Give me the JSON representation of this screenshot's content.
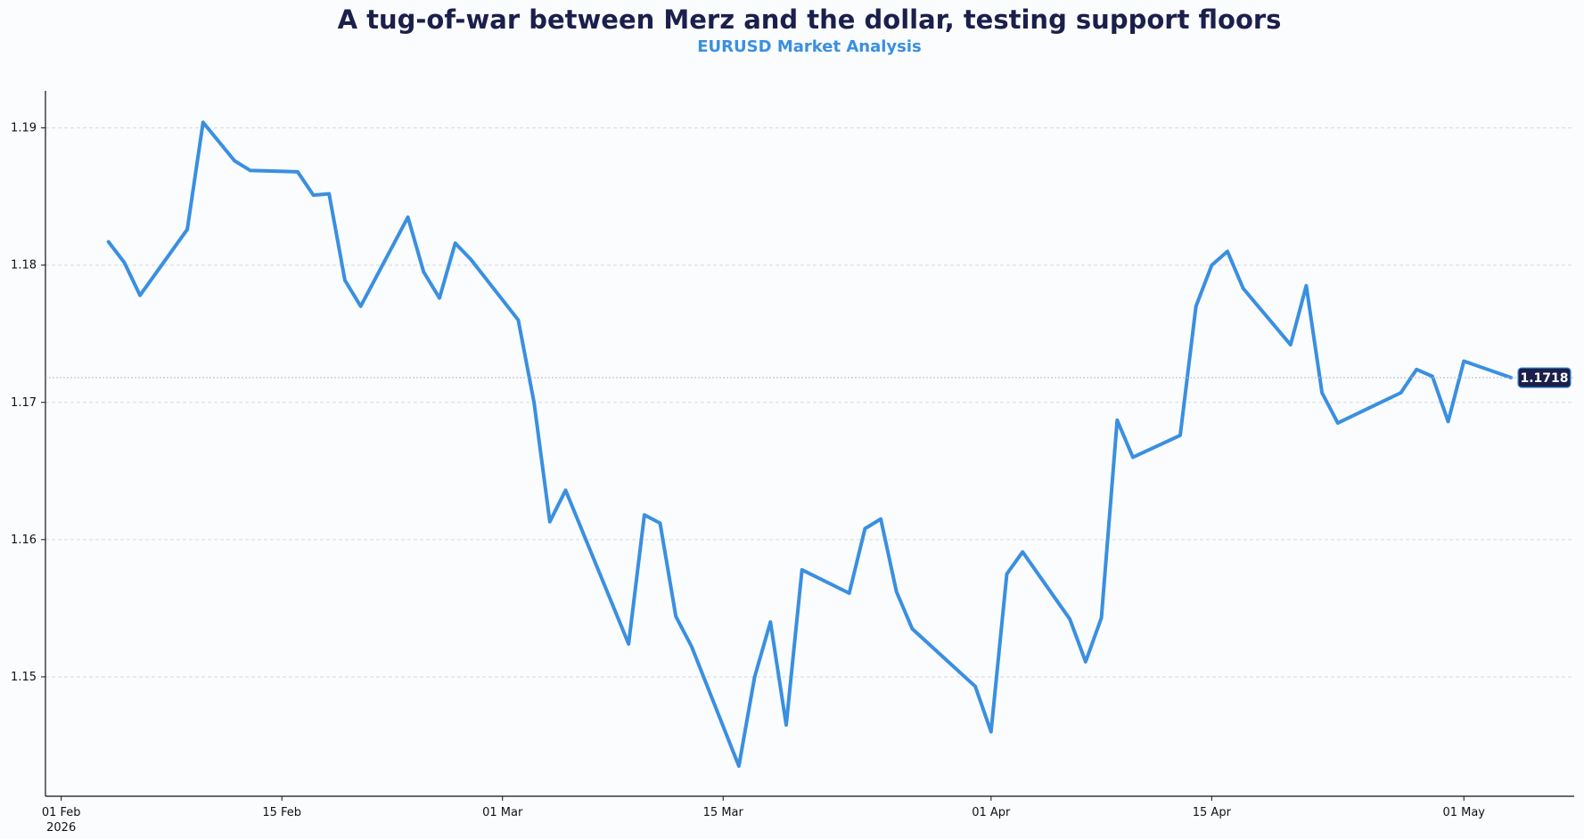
{
  "chart_data": {
    "type": "line",
    "title": "A tug-of-war between Merz and the dollar, testing support floors",
    "subtitle": "EURUSD Market Analysis",
    "xlabel": "",
    "ylabel": "",
    "xlim": [
      "2026-01-31",
      "2026-05-08"
    ],
    "ylim": [
      1.1413,
      1.1927
    ],
    "x_ticks": [
      {
        "date": "2026-02-01",
        "label": "01 Feb",
        "sublabel": "2026"
      },
      {
        "date": "2026-02-15",
        "label": "15 Feb"
      },
      {
        "date": "2026-03-01",
        "label": "01 Mar"
      },
      {
        "date": "2026-03-15",
        "label": "15 Mar"
      },
      {
        "date": "2026-04-01",
        "label": "01 Apr"
      },
      {
        "date": "2026-04-15",
        "label": "15 Apr"
      },
      {
        "date": "2026-05-01",
        "label": "01 May"
      }
    ],
    "y_ticks": [
      1.15,
      1.16,
      1.17,
      1.18,
      1.19
    ],
    "y_tick_labels": [
      "1.15",
      "1.16",
      "1.17",
      "1.18",
      "1.19"
    ],
    "grid": "horizontal dashed",
    "series": [
      {
        "color": "#3a8fe0",
        "x": [
          "2026-02-04",
          "2026-02-05",
          "2026-02-06",
          "2026-02-09",
          "2026-02-10",
          "2026-02-11",
          "2026-02-12",
          "2026-02-13",
          "2026-02-16",
          "2026-02-17",
          "2026-02-18",
          "2026-02-19",
          "2026-02-20",
          "2026-02-23",
          "2026-02-24",
          "2026-02-25",
          "2026-02-26",
          "2026-02-27",
          "2026-03-02",
          "2026-03-03",
          "2026-03-04",
          "2026-03-05",
          "2026-03-09",
          "2026-03-10",
          "2026-03-11",
          "2026-03-12",
          "2026-03-13",
          "2026-03-16",
          "2026-03-17",
          "2026-03-18",
          "2026-03-19",
          "2026-03-20",
          "2026-03-23",
          "2026-03-24",
          "2026-03-25",
          "2026-03-26",
          "2026-03-27",
          "2026-03-31",
          "2026-04-01",
          "2026-04-02",
          "2026-04-03",
          "2026-04-06",
          "2026-04-07",
          "2026-04-08",
          "2026-04-09",
          "2026-04-10",
          "2026-04-13",
          "2026-04-14",
          "2026-04-15",
          "2026-04-16",
          "2026-04-17",
          "2026-04-20",
          "2026-04-21",
          "2026-04-22",
          "2026-04-23",
          "2026-04-27",
          "2026-04-28",
          "2026-04-29",
          "2026-04-30",
          "2026-05-01",
          "2026-05-04"
        ],
        "values": [
          1.1817,
          1.1802,
          1.1778,
          1.1826,
          1.1904,
          1.189,
          1.1876,
          1.1869,
          1.1868,
          1.1851,
          1.1852,
          1.1789,
          1.177,
          1.1835,
          1.1795,
          1.1776,
          1.1816,
          1.1804,
          1.176,
          1.17,
          1.1613,
          1.1636,
          1.1524,
          1.1618,
          1.1612,
          1.1544,
          1.1522,
          1.1435,
          1.15,
          1.154,
          1.1465,
          1.1578,
          1.1561,
          1.1608,
          1.1615,
          1.1562,
          1.1535,
          1.1493,
          1.146,
          1.1575,
          1.1591,
          1.1542,
          1.1511,
          1.1543,
          1.1687,
          1.166,
          1.1676,
          1.177,
          1.18,
          1.181,
          1.1783,
          1.1742,
          1.1785,
          1.1707,
          1.1685,
          1.1707,
          1.1724,
          1.1719,
          1.1686,
          1.173,
          1.1718
        ]
      }
    ],
    "last_value_label": "1.1718",
    "last_value": 1.1718
  }
}
